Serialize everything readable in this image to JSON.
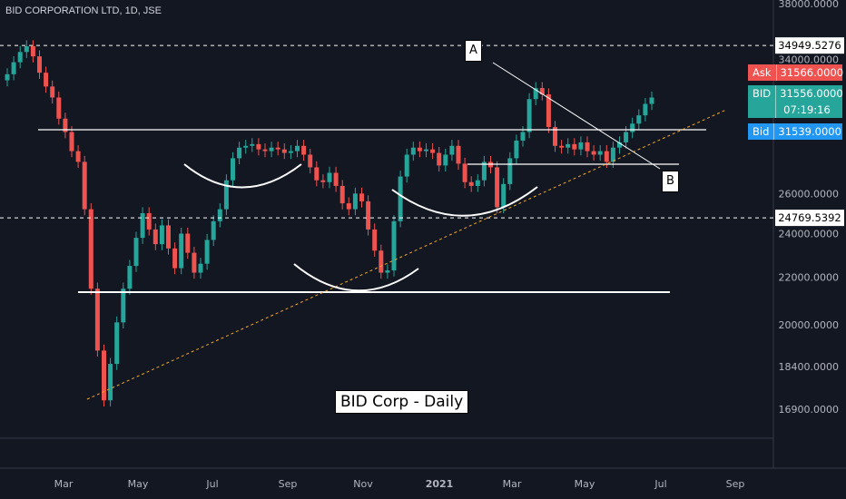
{
  "header": {
    "title": "BID CORPORATION LTD, 1D, JSE"
  },
  "chart_data": {
    "type": "candlestick",
    "title": "BID Corp - Daily",
    "x_axis_labels": [
      "Mar",
      "May",
      "Jul",
      "Sep",
      "Nov",
      "2021",
      "Mar",
      "May",
      "Jul",
      "Sep"
    ],
    "y_axis_labels": [
      "38000.0000",
      "34000.0000",
      "26000.0000",
      "24000.0000",
      "22000.0000",
      "20000.0000",
      "18400.0000",
      "16900.0000"
    ],
    "y_axis_scale": "log",
    "price_lines": [
      {
        "label": "34949.5276",
        "value": 34949.5276,
        "style": "dashed"
      },
      {
        "label": "24769.5392",
        "value": 24769.5392,
        "style": "dashed"
      }
    ],
    "quote_tags": [
      {
        "name": "Ask",
        "value": "31566.0000",
        "color": "#ef5350"
      },
      {
        "name": "BID",
        "value": "31556.0000",
        "time": "07:19:16",
        "color": "#26a69a"
      },
      {
        "name": "Bid",
        "value": "31539.0000",
        "color": "#2196f3"
      }
    ],
    "annotations": [
      {
        "text": "A"
      },
      {
        "text": "B"
      }
    ],
    "series": [
      {
        "name": "BID",
        "type": "candles",
        "close": [
          33000,
          33800,
          34500,
          34900,
          34200,
          33100,
          32200,
          31500,
          30200,
          29400,
          28300,
          27700,
          25200,
          21500,
          19000,
          17200,
          18500,
          20100,
          21500,
          22500,
          23800,
          25000,
          24200,
          23500,
          24400,
          23300,
          22400,
          24000,
          23100,
          22200,
          22600,
          23700,
          24600,
          25200,
          26700,
          27900,
          28500,
          28600,
          28700,
          28400,
          28300,
          28500,
          28400,
          28200,
          28300,
          28600,
          28100,
          27400,
          26700,
          26600,
          27100,
          26400,
          25500,
          25200,
          26000,
          25600,
          24200,
          23200,
          22200,
          22300,
          24600,
          26900,
          28100,
          28500,
          28300,
          28400,
          28200,
          27500,
          28100,
          28600,
          27600,
          26600,
          26400,
          26700,
          27700,
          27400,
          25300,
          26500,
          27900,
          28900,
          29400,
          31400,
          32100,
          31700,
          29700,
          28600,
          28500,
          28700,
          28400,
          28800,
          28300,
          28100,
          28300,
          27700,
          28500,
          28800,
          29400,
          29900,
          30400,
          31100,
          31500
        ],
        "open": [
          32600,
          33000,
          33800,
          34500,
          34900,
          34200,
          33100,
          32200,
          31500,
          30200,
          29400,
          28300,
          27700,
          25200,
          21500,
          19000,
          17200,
          18500,
          20100,
          21500,
          22500,
          23800,
          25000,
          24200,
          23500,
          24400,
          23300,
          22400,
          24000,
          23100,
          22200,
          22600,
          23700,
          24600,
          25200,
          26700,
          27900,
          28500,
          28600,
          28700,
          28400,
          28300,
          28500,
          28400,
          28200,
          28300,
          28600,
          28100,
          27400,
          26700,
          26600,
          27100,
          26400,
          25500,
          25200,
          26000,
          25600,
          24200,
          23200,
          22200,
          22300,
          24600,
          26900,
          28100,
          28500,
          28300,
          28400,
          28200,
          27500,
          28100,
          28600,
          27600,
          26600,
          26400,
          26700,
          27700,
          27400,
          25300,
          26500,
          27900,
          28900,
          29400,
          31400,
          32100,
          31700,
          29700,
          28600,
          28500,
          28700,
          28400,
          28800,
          28300,
          28100,
          28300,
          27700,
          28500,
          28800,
          29400,
          29900,
          30400,
          31100
        ]
      },
      {
        "name": "Support trendline",
        "type": "dashed-line",
        "color": "#f5a623"
      }
    ]
  }
}
